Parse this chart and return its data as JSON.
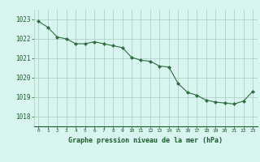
{
  "x": [
    0,
    1,
    2,
    3,
    4,
    5,
    6,
    7,
    8,
    9,
    10,
    11,
    12,
    13,
    14,
    15,
    16,
    17,
    18,
    19,
    20,
    21,
    22,
    23
  ],
  "y": [
    1022.9,
    1022.6,
    1022.1,
    1022.0,
    1021.75,
    1021.75,
    1021.85,
    1021.75,
    1021.65,
    1021.55,
    1021.05,
    1020.9,
    1020.85,
    1020.6,
    1020.55,
    1019.7,
    1019.25,
    1019.1,
    1018.85,
    1018.75,
    1018.7,
    1018.65,
    1018.8,
    1019.3
  ],
  "line_color": "#2d6e3e",
  "marker_color": "#2d6e3e",
  "bg_color": "#d8f5ef",
  "grid_color": "#a8ccc4",
  "xlabel": "Graphe pression niveau de la mer (hPa)",
  "xlabel_color": "#1a5c2a",
  "tick_color": "#1a5c2a",
  "ylim_min": 1017.5,
  "ylim_max": 1023.5,
  "xlim_min": -0.5,
  "xlim_max": 23.5,
  "yticks": [
    1018,
    1019,
    1020,
    1021,
    1022,
    1023
  ],
  "xticks": [
    0,
    1,
    2,
    3,
    4,
    5,
    6,
    7,
    8,
    9,
    10,
    11,
    12,
    13,
    14,
    15,
    16,
    17,
    18,
    19,
    20,
    21,
    22,
    23
  ]
}
